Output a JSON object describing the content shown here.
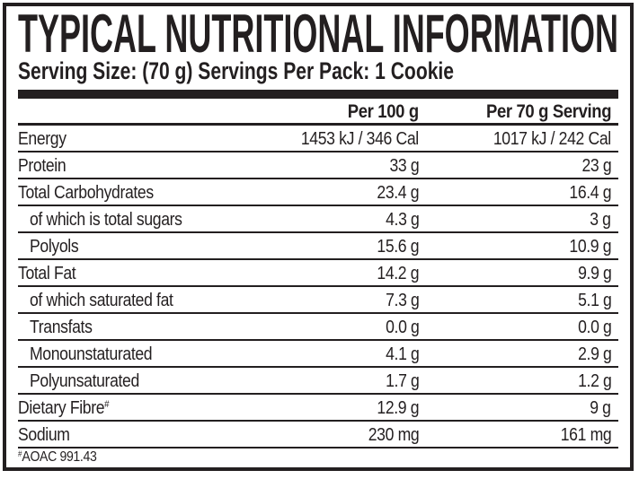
{
  "label": {
    "title": "TYPICAL NUTRITIONAL INFORMATION",
    "serving_line": "Serving Size: (70 g) Servings Per Pack: 1 Cookie",
    "columns": [
      "Per 100 g",
      "Per 70 g Serving"
    ],
    "rows": [
      {
        "name": "Energy",
        "per_100g": "1453 kJ / 346 Cal",
        "per_serving": "1017 kJ / 242 Cal",
        "indent": false
      },
      {
        "name": "Protein",
        "per_100g": "33 g",
        "per_serving": "23 g",
        "indent": false
      },
      {
        "name": "Total Carbohydrates",
        "per_100g": "23.4 g",
        "per_serving": "16.4 g",
        "indent": false
      },
      {
        "name": "of which is total sugars",
        "per_100g": "4.3 g",
        "per_serving": "3 g",
        "indent": true
      },
      {
        "name": "Polyols",
        "per_100g": "15.6 g",
        "per_serving": "10.9 g",
        "indent": true
      },
      {
        "name": "Total Fat",
        "per_100g": "14.2 g",
        "per_serving": "9.9 g",
        "indent": false
      },
      {
        "name": "of which saturated fat",
        "per_100g": "7.3 g",
        "per_serving": "5.1 g",
        "indent": true
      },
      {
        "name": "Transfats",
        "per_100g": "0.0 g",
        "per_serving": "0.0 g",
        "indent": true
      },
      {
        "name": "Monounstaturated",
        "per_100g": "4.1 g",
        "per_serving": "2.9 g",
        "indent": true
      },
      {
        "name": "Polyunsaturated",
        "per_100g": "1.7 g",
        "per_serving": "1.2 g",
        "indent": true
      },
      {
        "name": "Dietary Fibre",
        "superscript": "#",
        "per_100g": "12.9 g",
        "per_serving": "9 g",
        "indent": false
      },
      {
        "name": "Sodium",
        "per_100g": "230 mg",
        "per_serving": "161 mg",
        "indent": false
      }
    ],
    "footnote": {
      "superscript": "#",
      "text": "AOAC 991.43"
    },
    "colors": {
      "ink": "#231f20",
      "background": "#ffffff"
    }
  }
}
